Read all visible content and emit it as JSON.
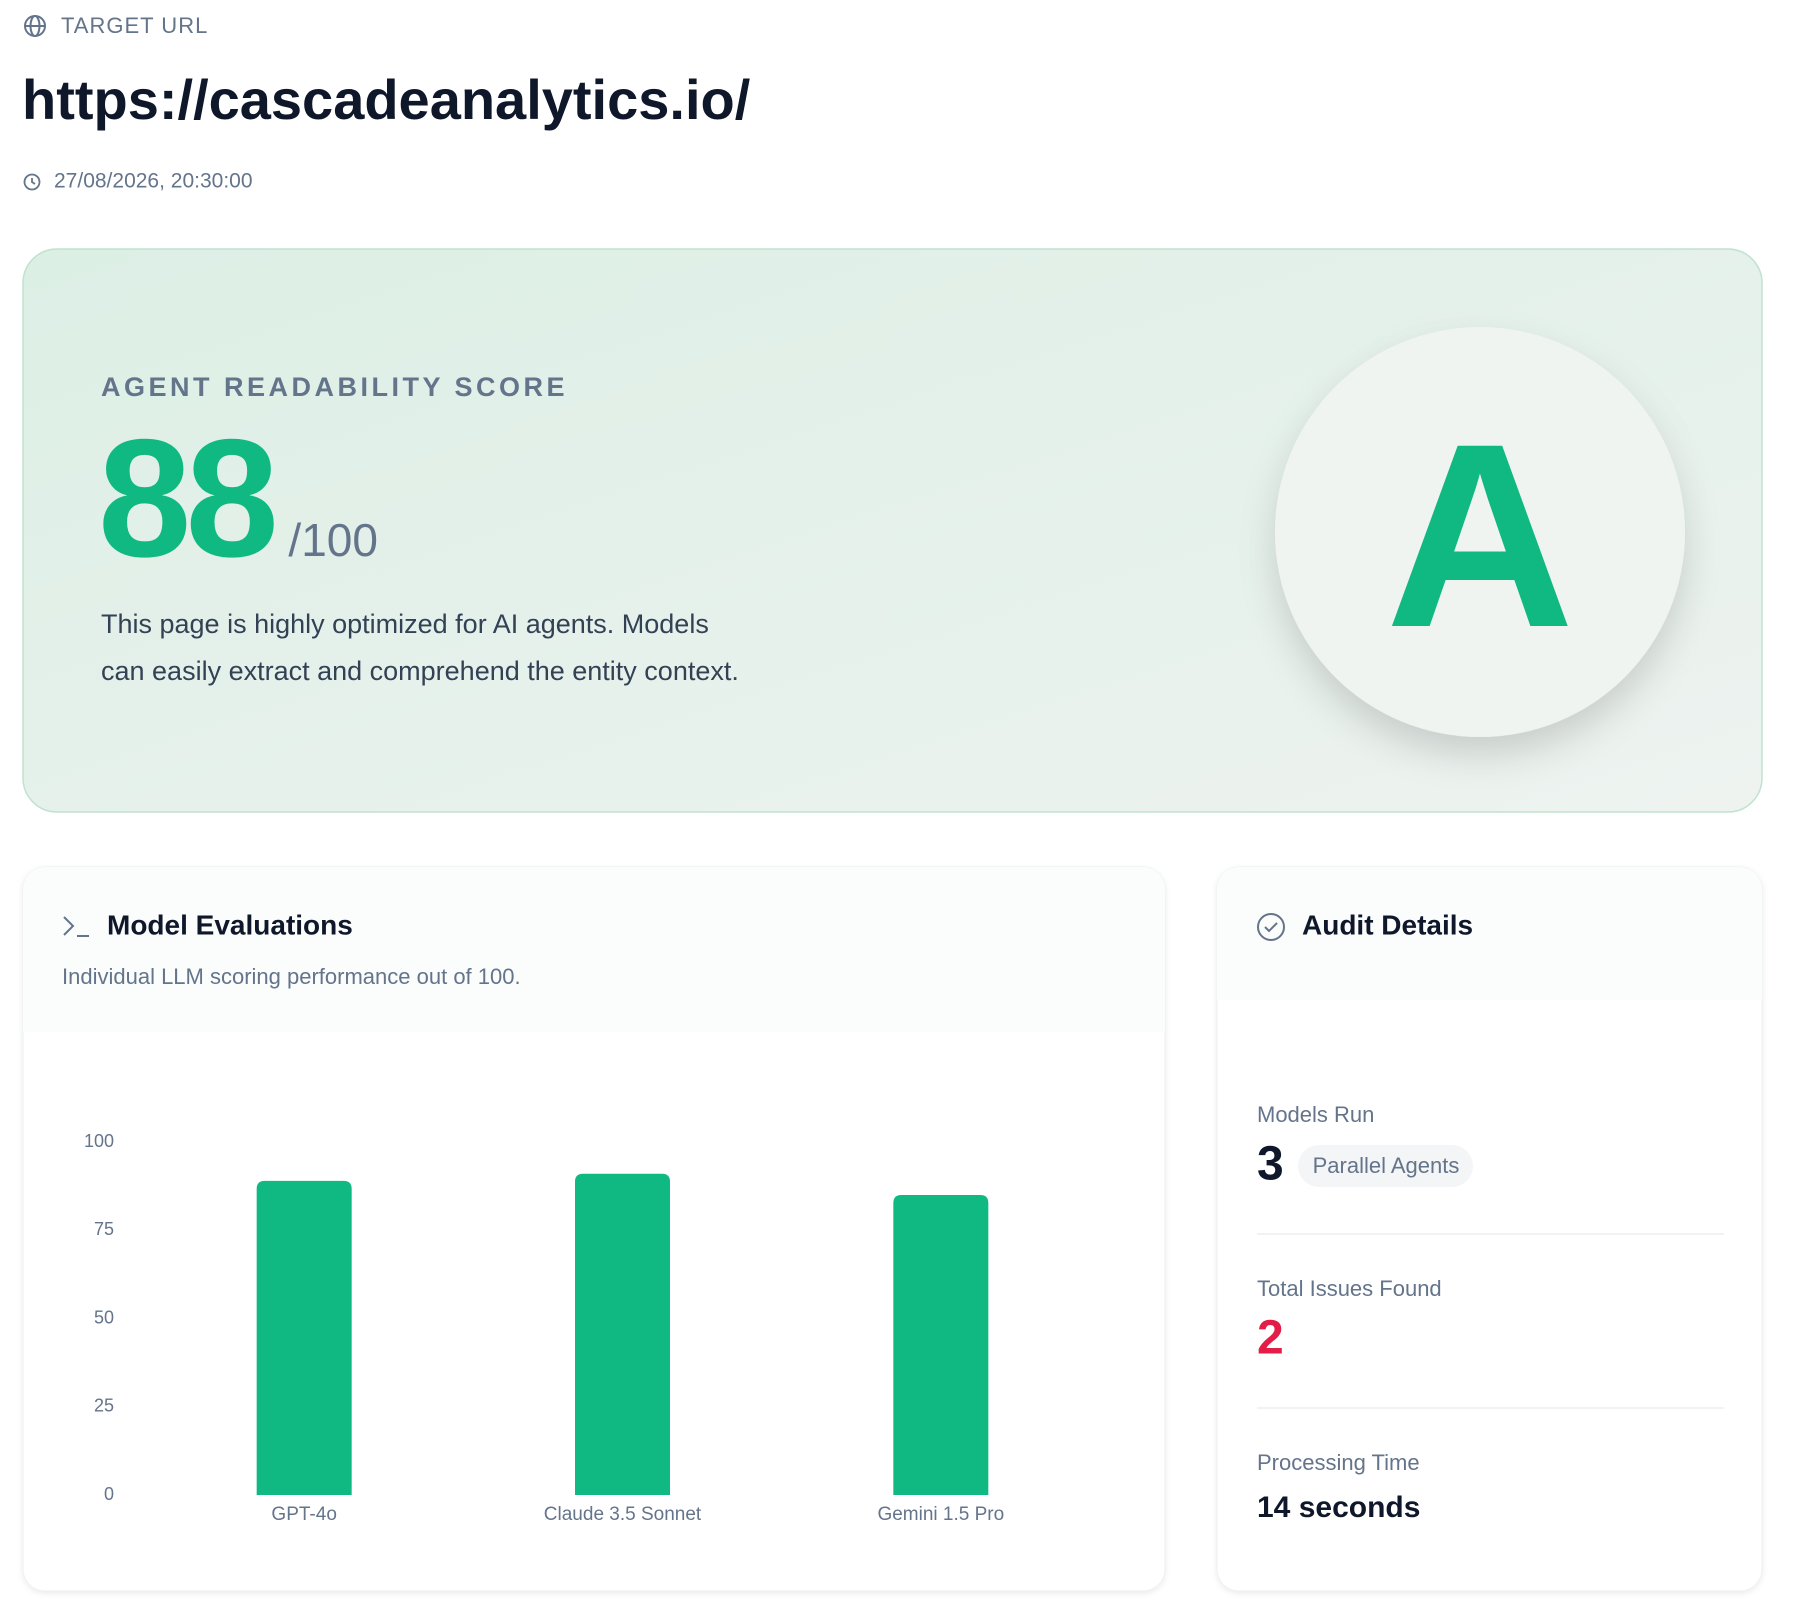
{
  "header": {
    "label": "TARGET URL",
    "url": "https://cascadeanalytics.io/",
    "timestamp": "27/08/2026, 20:30:00"
  },
  "score": {
    "label": "AGENT READABILITY SCORE",
    "value": 88,
    "max_label": "/100",
    "description": [
      "This page is highly optimized for AI agents. Models",
      "can easily extract and comprehend the entity context."
    ],
    "grade": "A"
  },
  "chart_data": {
    "type": "bar",
    "title": "Model Evaluations",
    "subtitle": "Individual LLM scoring performance out of 100.",
    "categories": [
      "GPT-4o",
      "Claude 3.5 Sonnet",
      "Gemini 1.5 Pro"
    ],
    "values": [
      89,
      91,
      85
    ],
    "color": "#10b981",
    "ylim": [
      0,
      100
    ],
    "yticks": [
      0,
      25,
      50,
      75,
      100
    ],
    "grid": false
  },
  "audit_details": {
    "title": "Audit Details",
    "models_run": {
      "label": "Models Run",
      "value": 3,
      "badge": "Parallel Agents"
    },
    "issues": {
      "label": "Total Issues Found",
      "value": 2
    },
    "processing_time": {
      "label": "Processing Time",
      "value_text": "14 seconds"
    }
  }
}
